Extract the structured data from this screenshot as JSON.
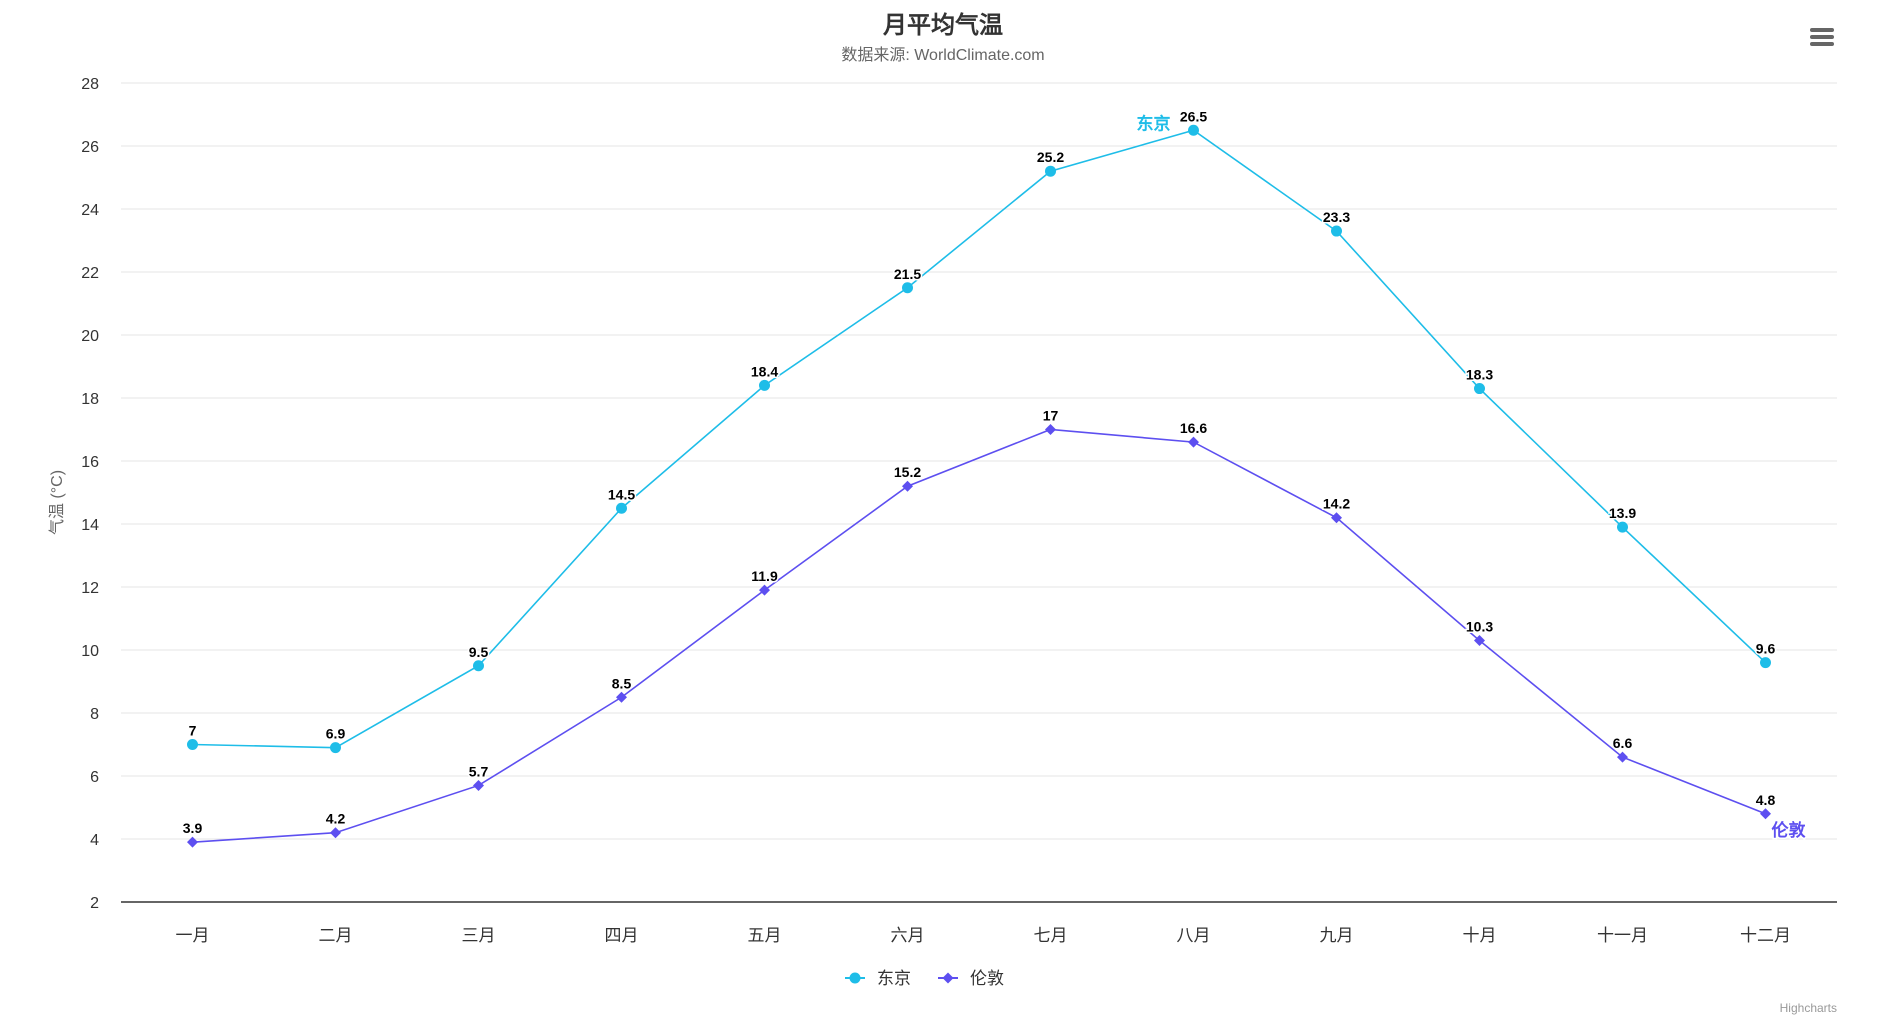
{
  "chart_data": {
    "type": "line",
    "title": "月平均气温",
    "subtitle": "数据来源: WorldClimate.com",
    "xlabel": "",
    "ylabel": "气温 (°C)",
    "categories": [
      "一月",
      "二月",
      "三月",
      "四月",
      "五月",
      "六月",
      "七月",
      "八月",
      "九月",
      "十月",
      "十一月",
      "十二月"
    ],
    "ylim": [
      2,
      28
    ],
    "yticks": [
      2,
      4,
      6,
      8,
      10,
      12,
      14,
      16,
      18,
      20,
      22,
      24,
      26,
      28
    ],
    "grid": true,
    "legend_position": "bottom-center",
    "credits": "Highcharts",
    "series": [
      {
        "name": "东京",
        "color": "#1ebde8",
        "marker": "circle",
        "end_label": "东京",
        "end_label_at": "max",
        "values": [
          7,
          6.9,
          9.5,
          14.5,
          18.4,
          21.5,
          25.2,
          26.5,
          23.3,
          18.3,
          13.9,
          9.6
        ]
      },
      {
        "name": "伦敦",
        "color": "#5d4ff0",
        "marker": "diamond",
        "end_label": "伦敦",
        "end_label_at": "last",
        "values": [
          3.9,
          4.2,
          5.7,
          8.5,
          11.9,
          15.2,
          17,
          16.6,
          14.2,
          10.3,
          6.6,
          4.8
        ]
      }
    ]
  },
  "toolbar": {
    "menu_icon": "hamburger-menu-icon"
  }
}
